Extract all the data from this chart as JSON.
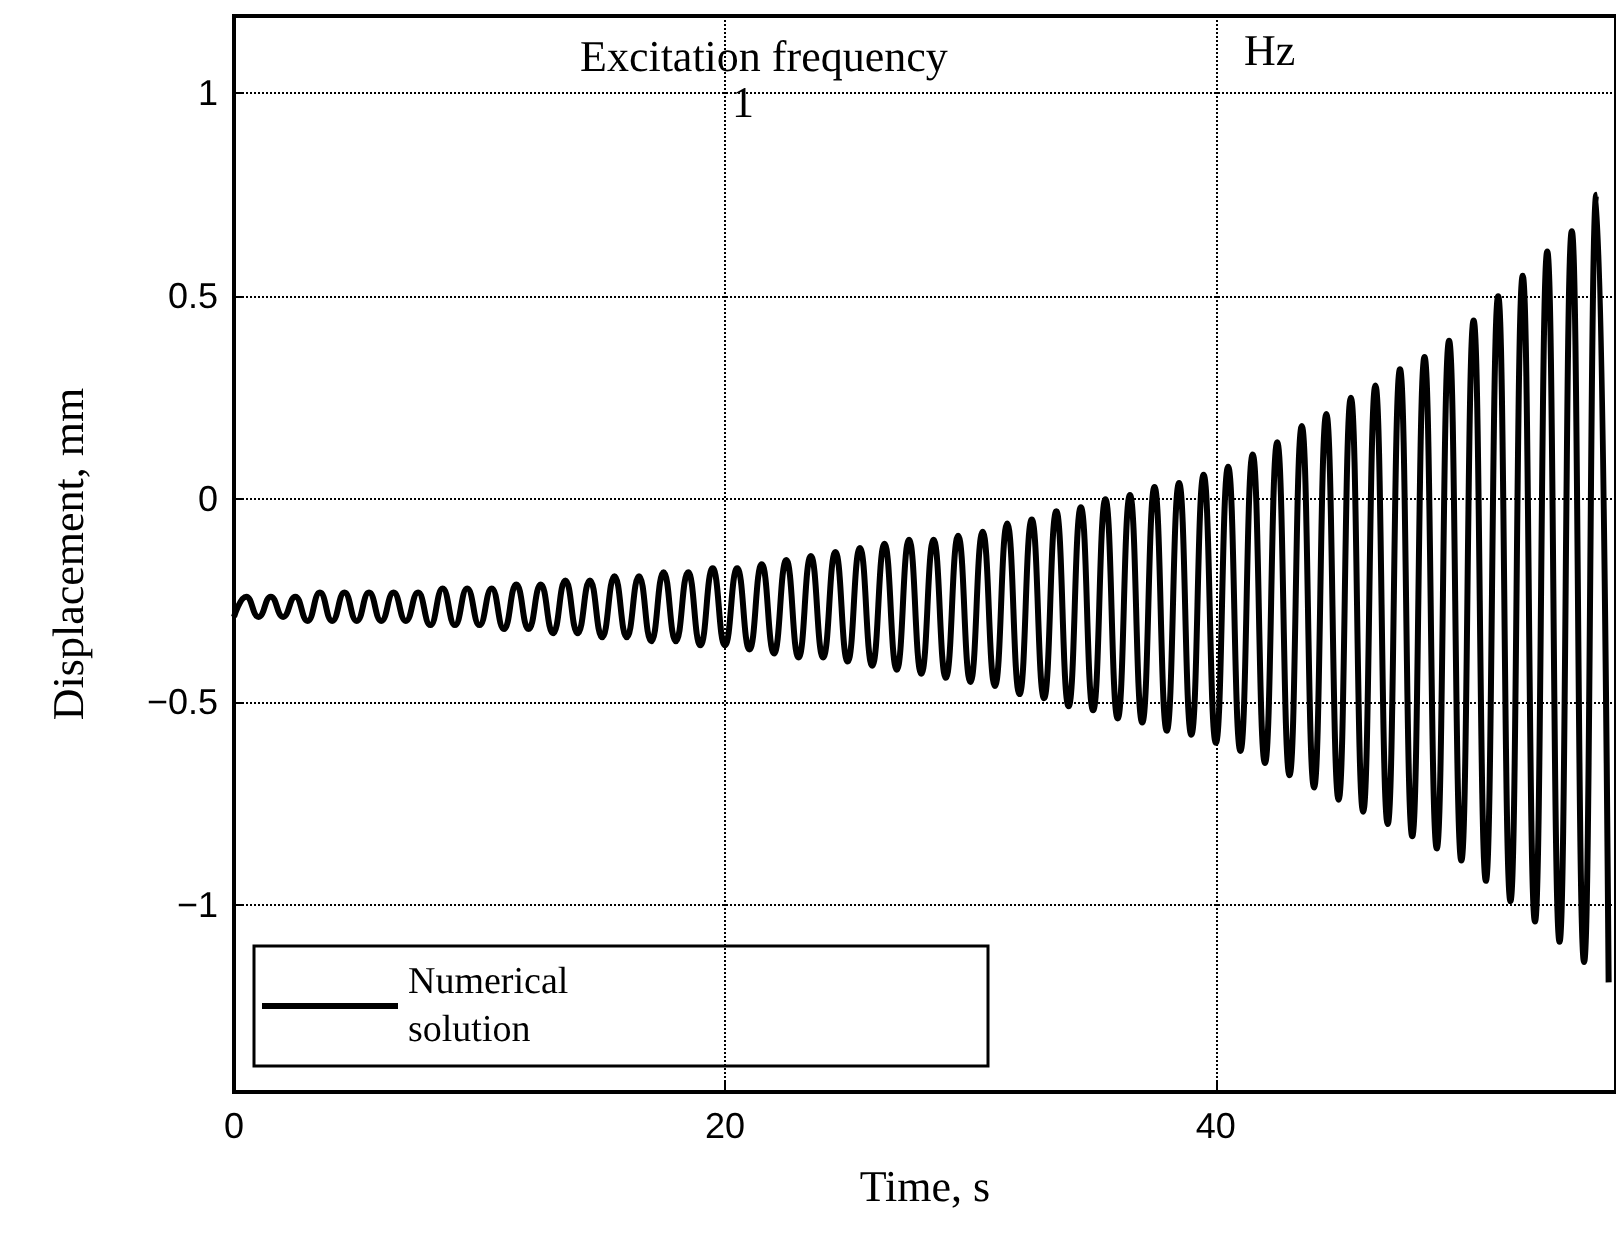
{
  "chart_data": {
    "type": "line",
    "title": "Excitation frequency",
    "annotations": [
      "Hz",
      "1"
    ],
    "xlabel": "Time, s",
    "ylabel": "Displacement, mm",
    "xlim": [
      0,
      56.3
    ],
    "ylim": [
      -1.46,
      1.19
    ],
    "xticks": [
      0,
      20,
      40
    ],
    "yticks": [
      -1,
      -0.5,
      0,
      0.5,
      1
    ],
    "grid": true,
    "legend": "bottom left",
    "marker": "none",
    "line_style": "solid",
    "x": [
      0,
      0.5,
      1,
      1.5,
      2,
      2.5,
      3,
      3.5,
      4,
      4.5,
      5,
      5.5,
      6,
      6.5,
      7,
      7.5,
      8,
      8.5,
      9,
      9.5,
      10,
      10.5,
      11,
      11.5,
      12,
      12.5,
      13,
      13.5,
      14,
      14.5,
      15,
      15.5,
      16,
      16.5,
      17,
      17.5,
      18,
      18.5,
      19,
      19.5,
      20,
      20.5,
      21,
      21.5,
      22,
      22.5,
      23,
      23.5,
      24,
      24.5,
      25,
      25.5,
      26,
      26.5,
      27,
      27.5,
      28,
      28.5,
      29,
      29.5,
      30,
      30.5,
      31,
      31.5,
      32,
      32.5,
      33,
      33.5,
      34,
      34.5,
      35,
      35.5,
      36,
      36.5,
      37,
      37.5,
      38,
      38.5,
      39,
      39.5,
      40,
      40.5,
      41,
      41.5,
      42,
      42.5,
      43,
      43.5,
      44,
      44.5,
      45,
      45.5,
      46,
      46.5,
      47,
      47.5,
      48,
      48.5,
      49,
      49.5,
      50,
      50.5,
      51,
      51.5,
      52,
      52.5,
      53,
      53.5,
      54,
      54.5,
      55,
      55.5,
      56
    ],
    "series": [
      {
        "name": "Numerical solution",
        "color": "#000000",
        "values": [
          -0.29,
          -0.24,
          -0.29,
          -0.24,
          -0.29,
          -0.24,
          -0.3,
          -0.23,
          -0.3,
          -0.23,
          -0.3,
          -0.23,
          -0.3,
          -0.23,
          -0.3,
          -0.23,
          -0.31,
          -0.22,
          -0.31,
          -0.22,
          -0.31,
          -0.22,
          -0.32,
          -0.21,
          -0.32,
          -0.21,
          -0.33,
          -0.2,
          -0.33,
          -0.2,
          -0.34,
          -0.19,
          -0.34,
          -0.19,
          -0.35,
          -0.18,
          -0.35,
          -0.18,
          -0.36,
          -0.17,
          -0.36,
          -0.17,
          -0.37,
          -0.16,
          -0.38,
          -0.15,
          -0.39,
          -0.14,
          -0.39,
          -0.13,
          -0.4,
          -0.12,
          -0.41,
          -0.11,
          -0.42,
          -0.1,
          -0.43,
          -0.1,
          -0.44,
          -0.09,
          -0.45,
          -0.08,
          -0.46,
          -0.06,
          -0.48,
          -0.05,
          -0.49,
          -0.03,
          -0.51,
          -0.02,
          -0.52,
          0.0,
          -0.54,
          0.01,
          -0.55,
          0.03,
          -0.57,
          0.04,
          -0.58,
          0.06,
          -0.6,
          0.08,
          -0.62,
          0.11,
          -0.65,
          0.14,
          -0.68,
          0.18,
          -0.71,
          0.21,
          -0.74,
          0.25,
          -0.77,
          0.28,
          -0.8,
          0.32,
          -0.83,
          0.35,
          -0.86,
          0.39,
          -0.89,
          0.44,
          -0.94,
          0.5,
          -0.99,
          0.55,
          -1.04,
          0.61,
          -1.09,
          0.66,
          -1.14,
          0.75,
          -1.19
        ]
      }
    ]
  }
}
